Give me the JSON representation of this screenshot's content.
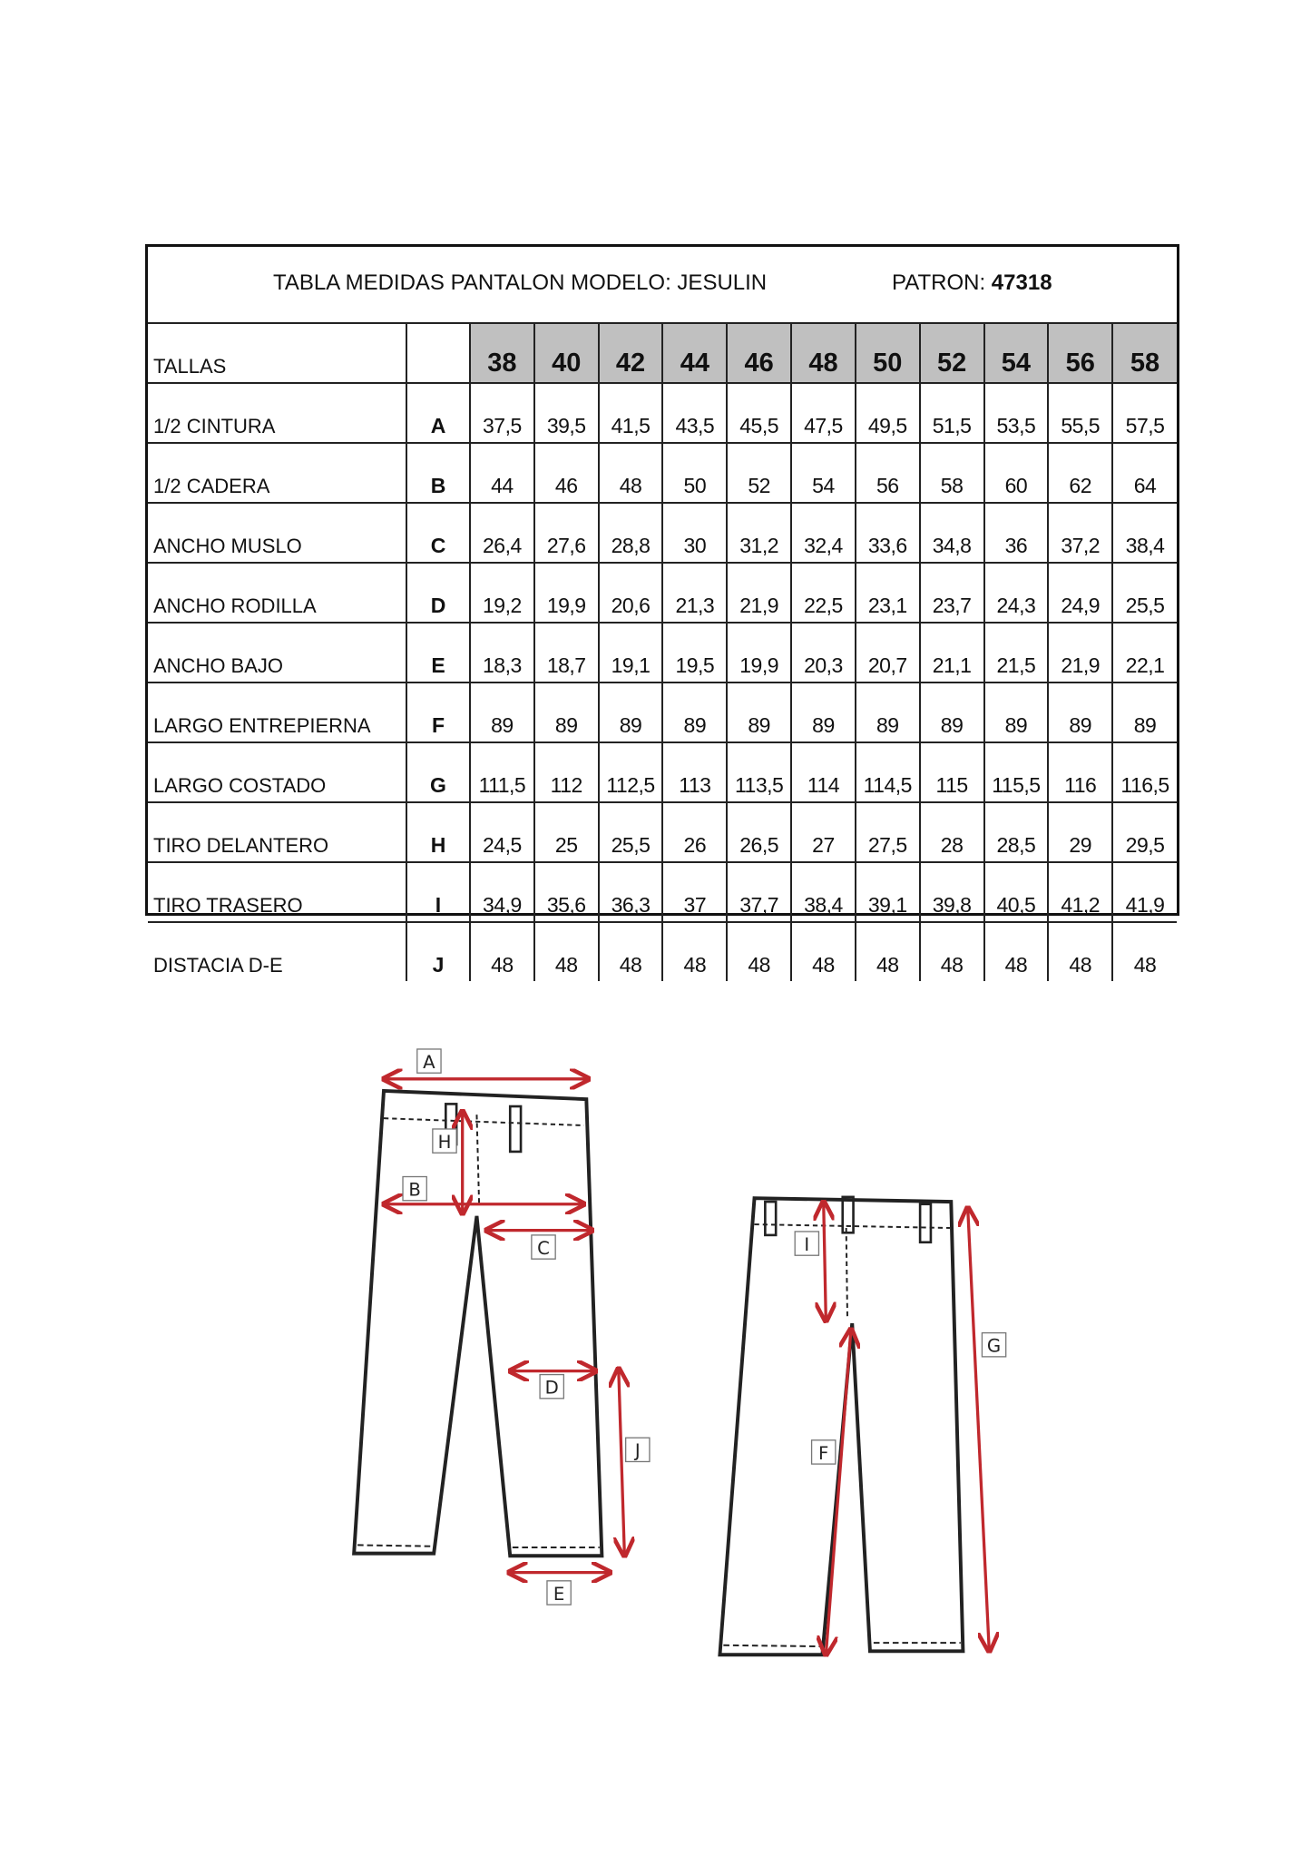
{
  "header": {
    "title": "TABLA MEDIDAS PANTALON MODELO:  JESULIN",
    "patron_label": "PATRON:",
    "patron_value": "47318"
  },
  "table": {
    "size_label": "TALLAS",
    "sizes": [
      "38",
      "40",
      "42",
      "44",
      "46",
      "48",
      "50",
      "52",
      "54",
      "56",
      "58"
    ],
    "rows": [
      {
        "name": "1/2  CINTURA",
        "letter": "A",
        "values": [
          "37,5",
          "39,5",
          "41,5",
          "43,5",
          "45,5",
          "47,5",
          "49,5",
          "51,5",
          "53,5",
          "55,5",
          "57,5"
        ]
      },
      {
        "name": "1/2 CADERA",
        "letter": "B",
        "values": [
          "44",
          "46",
          "48",
          "50",
          "52",
          "54",
          "56",
          "58",
          "60",
          "62",
          "64"
        ]
      },
      {
        "name": "ANCHO MUSLO",
        "letter": "C",
        "values": [
          "26,4",
          "27,6",
          "28,8",
          "30",
          "31,2",
          "32,4",
          "33,6",
          "34,8",
          "36",
          "37,2",
          "38,4"
        ]
      },
      {
        "name": "ANCHO RODILLA",
        "letter": "D",
        "values": [
          "19,2",
          "19,9",
          "20,6",
          "21,3",
          "21,9",
          "22,5",
          "23,1",
          "23,7",
          "24,3",
          "24,9",
          "25,5"
        ]
      },
      {
        "name": "ANCHO BAJO",
        "letter": "E",
        "values": [
          "18,3",
          "18,7",
          "19,1",
          "19,5",
          "19,9",
          "20,3",
          "20,7",
          "21,1",
          "21,5",
          "21,9",
          "22,1"
        ]
      },
      {
        "name": "LARGO ENTREPIERNA",
        "letter": "F",
        "values": [
          "89",
          "89",
          "89",
          "89",
          "89",
          "89",
          "89",
          "89",
          "89",
          "89",
          "89"
        ]
      },
      {
        "name": "LARGO COSTADO",
        "letter": "G",
        "values": [
          "111,5",
          "112",
          "112,5",
          "113",
          "113,5",
          "114",
          "114,5",
          "115",
          "115,5",
          "116",
          "116,5"
        ]
      },
      {
        "name": "TIRO DELANTERO",
        "letter": "H",
        "values": [
          "24,5",
          "25",
          "25,5",
          "26",
          "26,5",
          "27",
          "27,5",
          "28",
          "28,5",
          "29",
          "29,5"
        ]
      },
      {
        "name": "TIRO TRASERO",
        "letter": "I",
        "values": [
          "34,9",
          "35,6",
          "36,3",
          "37",
          "37,7",
          "38,4",
          "39,1",
          "39,8",
          "40,5",
          "41,2",
          "41,9"
        ]
      },
      {
        "name": "DISTACIA   D-E",
        "letter": "J",
        "values": [
          "48",
          "48",
          "48",
          "48",
          "48",
          "48",
          "48",
          "48",
          "48",
          "48",
          "48"
        ]
      }
    ]
  },
  "diagram": {
    "arrow_color": "#c0282d",
    "labels": {
      "A": "A",
      "B": "B",
      "C": "C",
      "D": "D",
      "E": "E",
      "F": "F",
      "G": "G",
      "H": "H",
      "I": "I",
      "J": "J"
    }
  }
}
